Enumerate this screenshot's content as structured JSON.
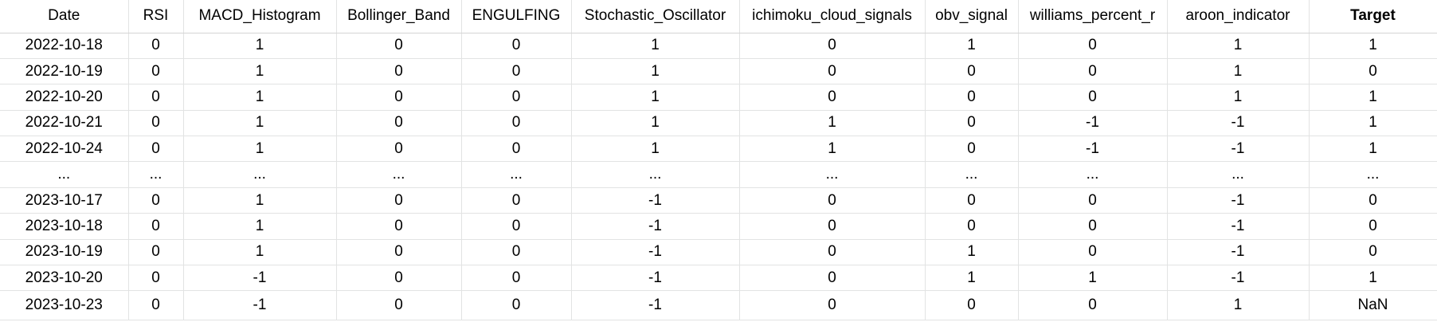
{
  "columns": [
    {
      "label": "Date",
      "bold": false
    },
    {
      "label": "RSI",
      "bold": false
    },
    {
      "label": "MACD_Histogram",
      "bold": false
    },
    {
      "label": "Bollinger_Band",
      "bold": false
    },
    {
      "label": "ENGULFING",
      "bold": false
    },
    {
      "label": "Stochastic_Oscillator",
      "bold": false
    },
    {
      "label": "ichimoku_cloud_signals",
      "bold": false
    },
    {
      "label": "obv_signal",
      "bold": false
    },
    {
      "label": "williams_percent_r",
      "bold": false
    },
    {
      "label": "aroon_indicator",
      "bold": false
    },
    {
      "label": "Target",
      "bold": true
    }
  ],
  "rows": [
    [
      "2022-10-18",
      "0",
      "1",
      "0",
      "0",
      "1",
      "0",
      "1",
      "0",
      "1",
      "1"
    ],
    [
      "2022-10-19",
      "0",
      "1",
      "0",
      "0",
      "1",
      "0",
      "0",
      "0",
      "1",
      "0"
    ],
    [
      "2022-10-20",
      "0",
      "1",
      "0",
      "0",
      "1",
      "0",
      "0",
      "0",
      "1",
      "1"
    ],
    [
      "2022-10-21",
      "0",
      "1",
      "0",
      "0",
      "1",
      "1",
      "0",
      "-1",
      "-1",
      "1"
    ],
    [
      "2022-10-24",
      "0",
      "1",
      "0",
      "0",
      "1",
      "1",
      "0",
      "-1",
      "-1",
      "1"
    ],
    [
      "...",
      "...",
      "...",
      "...",
      "...",
      "...",
      "...",
      "...",
      "...",
      "...",
      "..."
    ],
    [
      "2023-10-17",
      "0",
      "1",
      "0",
      "0",
      "-1",
      "0",
      "0",
      "0",
      "-1",
      "0"
    ],
    [
      "2023-10-18",
      "0",
      "1",
      "0",
      "0",
      "-1",
      "0",
      "0",
      "0",
      "-1",
      "0"
    ],
    [
      "2023-10-19",
      "0",
      "1",
      "0",
      "0",
      "-1",
      "0",
      "1",
      "0",
      "-1",
      "0"
    ],
    [
      "2023-10-20",
      "0",
      "-1",
      "0",
      "0",
      "-1",
      "0",
      "1",
      "1",
      "-1",
      "1"
    ],
    [
      "2023-10-23",
      "0",
      "-1",
      "0",
      "0",
      "-1",
      "0",
      "0",
      "0",
      "1",
      "NaN"
    ]
  ]
}
